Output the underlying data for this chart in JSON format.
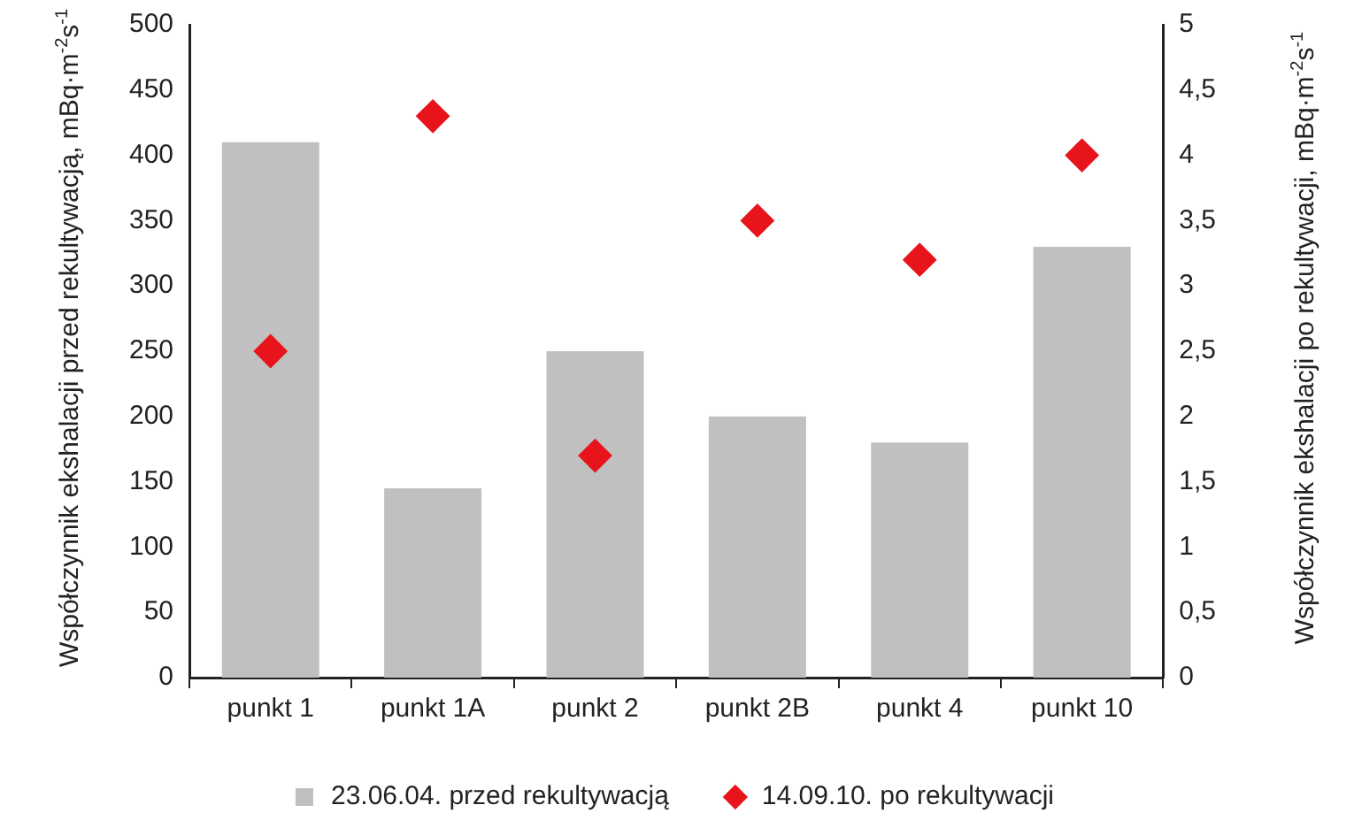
{
  "chart_data": {
    "type": "bar",
    "categories": [
      "punkt 1",
      "punkt 1A",
      "punkt 2",
      "punkt 2B",
      "punkt 4",
      "punkt 10"
    ],
    "ylabel": "Współczynnik ekshalacji przed rekultywacją, mBq·m$^{-2}$s$^{-1}$",
    "y2label": "Współczynnik ekshalacji po rekultywacji, mBq·m$^{-2}$s$^{-1}$",
    "series": [
      {
        "name": "23.06.04. przed rekultywacją",
        "color": "#c0c0c0",
        "values": [
          410,
          145,
          250,
          200,
          180,
          330
        ]
      },
      {
        "name": "14.09.10. po rekultywacji",
        "type": "scatter",
        "axis": "y2",
        "color": "#e8141c",
        "marker": "diamond",
        "values": [
          2.5,
          4.3,
          1.7,
          3.5,
          3.2,
          4.0
        ]
      }
    ],
    "ylim": [
      0,
      500
    ],
    "yticks": [
      0,
      50,
      100,
      150,
      200,
      250,
      300,
      350,
      400,
      450,
      500
    ],
    "y2lim": [
      0,
      5
    ],
    "y2ticks": [
      0,
      {
        "value": 0.5,
        "label": "0,5"
      },
      1,
      {
        "value": 1.5,
        "label": "1,5"
      },
      2,
      {
        "value": 2.5,
        "label": "2,5"
      },
      3,
      {
        "value": 3.5,
        "label": "3,5"
      },
      4,
      {
        "value": 4.5,
        "label": "4,5"
      },
      5
    ],
    "grid": false,
    "legend": "bottom"
  }
}
